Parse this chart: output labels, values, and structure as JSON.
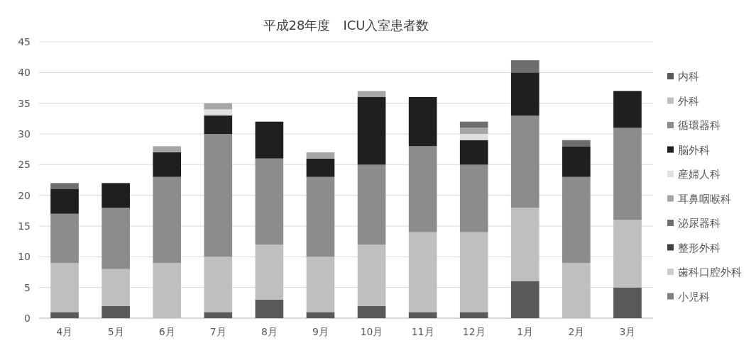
{
  "chart_data": {
    "type": "bar",
    "title": "平成28年度　ICU入室患者数",
    "categories": [
      "4月",
      "5月",
      "6月",
      "7月",
      "8月",
      "9月",
      "10月",
      "11月",
      "12月",
      "1月",
      "2月",
      "3月"
    ],
    "stacked": true,
    "ylim": [
      0,
      45
    ],
    "yticks": [
      0,
      5,
      10,
      15,
      20,
      25,
      30,
      35,
      40,
      45
    ],
    "grid": "y",
    "legend": "right",
    "series": [
      {
        "name": "内科",
        "color": "#595959",
        "values": [
          1,
          2,
          0,
          1,
          3,
          1,
          2,
          1,
          1,
          6,
          0,
          5
        ]
      },
      {
        "name": "外科",
        "color": "#bfbfbf",
        "values": [
          8,
          6,
          9,
          9,
          9,
          9,
          10,
          13,
          13,
          12,
          9,
          11
        ]
      },
      {
        "name": "循環器科",
        "color": "#8c8c8c",
        "values": [
          8,
          10,
          14,
          20,
          14,
          13,
          13,
          14,
          11,
          15,
          14,
          15
        ]
      },
      {
        "name": "脳外科",
        "color": "#1f1f1f",
        "values": [
          4,
          4,
          4,
          3,
          6,
          3,
          11,
          8,
          4,
          7,
          5,
          6
        ]
      },
      {
        "name": "産婦人科",
        "color": "#e0e0e0",
        "values": [
          0,
          0,
          0,
          1,
          0,
          0,
          0,
          0,
          1,
          0,
          0,
          0
        ]
      },
      {
        "name": "耳鼻咽喉科",
        "color": "#a6a6a6",
        "values": [
          0,
          0,
          1,
          1,
          0,
          1,
          1,
          0,
          1,
          0,
          0,
          0
        ]
      },
      {
        "name": "泌尿器科",
        "color": "#6e6e6e",
        "values": [
          1,
          0,
          0,
          0,
          0,
          0,
          0,
          0,
          1,
          2,
          1,
          0
        ]
      },
      {
        "name": "整形外科",
        "color": "#404040",
        "values": [
          0,
          0,
          0,
          0,
          0,
          0,
          0,
          0,
          0,
          0,
          0,
          0
        ]
      },
      {
        "name": "歯科口腔外科",
        "color": "#cccccc",
        "values": [
          0,
          0,
          0,
          0,
          0,
          0,
          0,
          0,
          0,
          0,
          0,
          0
        ]
      },
      {
        "name": "小児科",
        "color": "#808080",
        "values": [
          0,
          0,
          0,
          0,
          0,
          0,
          0,
          0,
          0,
          0,
          0,
          0
        ]
      }
    ]
  }
}
